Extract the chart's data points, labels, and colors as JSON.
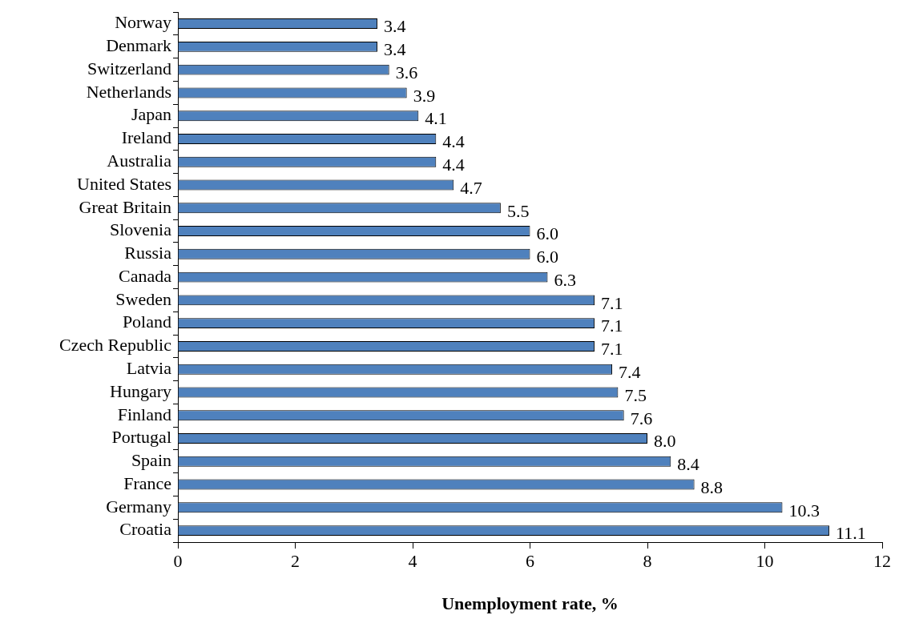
{
  "chart_data": {
    "type": "bar",
    "orientation": "horizontal",
    "xlabel": "Unemployment rate, %",
    "categories": [
      "Norway",
      "Denmark",
      "Switzerland",
      "Netherlands",
      "Japan",
      "Ireland",
      "Australia",
      "United States",
      "Great Britain",
      "Slovenia",
      "Russia",
      "Canada",
      "Sweden",
      "Poland",
      "Czech Republic",
      "Latvia",
      "Hungary",
      "Finland",
      "Portugal",
      "Spain",
      "France",
      "Germany",
      "Croatia"
    ],
    "values": [
      3.4,
      3.4,
      3.6,
      3.9,
      4.1,
      4.4,
      4.4,
      4.7,
      5.5,
      6.0,
      6.0,
      6.3,
      7.1,
      7.1,
      7.1,
      7.4,
      7.5,
      7.6,
      8.0,
      8.4,
      8.8,
      10.3,
      11.1
    ],
    "value_labels": [
      "3.4",
      "3.4",
      "3.6",
      "3.9",
      "4.1",
      "4.4",
      "4.4",
      "4.7",
      "5.5",
      "6.0",
      "6.0",
      "6.3",
      "7.1",
      "7.1",
      "7.1",
      "7.4",
      "7.5",
      "7.6",
      "8.0",
      "8.4",
      "8.8",
      "10.3",
      "11.1"
    ],
    "color": "#4f81bd",
    "xlim": [
      0,
      12
    ],
    "xticks": [
      0,
      2,
      4,
      6,
      8,
      10,
      12
    ],
    "grid": false,
    "legend": false
  }
}
